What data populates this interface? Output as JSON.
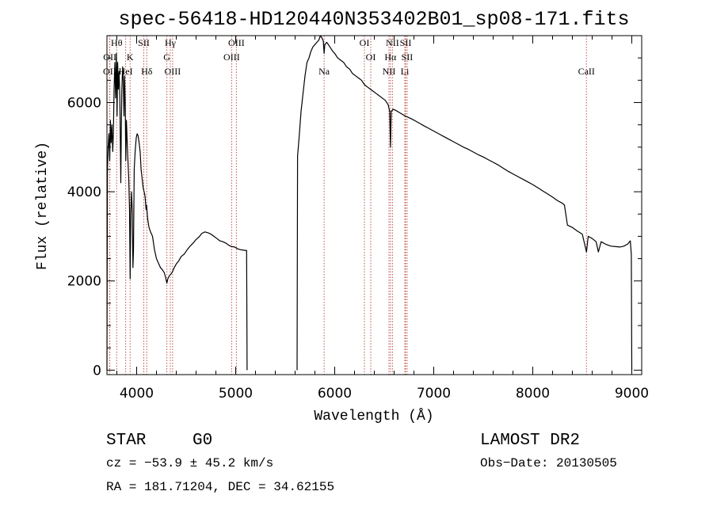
{
  "chart_data": {
    "type": "line",
    "title": "spec-56418-HD120440N353402B01_sp08-171.fits",
    "xlabel": "Wavelength (Å)",
    "ylabel": "Flux (relative)",
    "xlim": [
      3700,
      9100
    ],
    "ylim": [
      -100,
      7500
    ],
    "x_ticks": [
      4000,
      5000,
      6000,
      7000,
      8000,
      9000
    ],
    "y_ticks": [
      0,
      2000,
      4000,
      6000
    ],
    "grid": false,
    "colors": {
      "spectrum": "#000000",
      "line_marker": "#c0504d",
      "frame": "#000000"
    },
    "spectral_lines": [
      {
        "name": "OII",
        "wavelength": 3727,
        "row": 3
      },
      {
        "name": "OII",
        "wavelength": 3729,
        "row": 2
      },
      {
        "name": "Hθ",
        "wavelength": 3798,
        "row": 1
      },
      {
        "name": "HeI",
        "wavelength": 3889,
        "row": 3
      },
      {
        "name": "K",
        "wavelength": 3934,
        "row": 2
      },
      {
        "name": "SII",
        "wavelength": 4072,
        "row": 1
      },
      {
        "name": "Hδ",
        "wavelength": 4102,
        "row": 4
      },
      {
        "name": "Hγ",
        "wavelength": 4340,
        "row": 1
      },
      {
        "name": "G",
        "wavelength": 4305,
        "row": 2
      },
      {
        "name": "OIII",
        "wavelength": 4363,
        "row": 3
      },
      {
        "name": "OIII",
        "wavelength": 4959,
        "row": 2
      },
      {
        "name": "OIII",
        "wavelength": 5007,
        "row": 1
      },
      {
        "name": "Na",
        "wavelength": 5893,
        "row": 4
      },
      {
        "name": "OI",
        "wavelength": 6300,
        "row": 1
      },
      {
        "name": "OI",
        "wavelength": 6364,
        "row": 2
      },
      {
        "name": "NII",
        "wavelength": 6548,
        "row": 4
      },
      {
        "name": "NII",
        "wavelength": 6583,
        "row": 1
      },
      {
        "name": "Hα",
        "wavelength": 6563,
        "row": 2
      },
      {
        "name": "Li",
        "wavelength": 6708,
        "row": 3
      },
      {
        "name": "SII",
        "wavelength": 6716,
        "row": 1
      },
      {
        "name": "SII",
        "wavelength": 6731,
        "row": 2
      },
      {
        "name": "CaII",
        "wavelength": 8542,
        "row": 4
      }
    ],
    "series": [
      {
        "segments": [
          [
            [
              3700,
              0
            ],
            [
              3705,
              4500
            ],
            [
              3712,
              5000
            ],
            [
              3720,
              5300
            ],
            [
              3728,
              4700
            ],
            [
              3735,
              5600
            ],
            [
              3742,
              5100
            ],
            [
              3750,
              5500
            ],
            [
              3758,
              4900
            ],
            [
              3765,
              5300
            ],
            [
              3772,
              6300
            ],
            [
              3780,
              6900
            ],
            [
              3787,
              6100
            ],
            [
              3795,
              7100
            ],
            [
              3802,
              5700
            ],
            [
              3808,
              6900
            ],
            [
              3815,
              6300
            ],
            [
              3822,
              6700
            ],
            [
              3830,
              6100
            ],
            [
              3835,
              5100
            ],
            [
              3840,
              4200
            ],
            [
              3845,
              5400
            ],
            [
              3850,
              6300
            ],
            [
              3858,
              6800
            ],
            [
              3865,
              6500
            ],
            [
              3872,
              5700
            ],
            [
              3878,
              6600
            ],
            [
              3885,
              5900
            ],
            [
              3890,
              4700
            ],
            [
              3897,
              5600
            ],
            [
              3905,
              5100
            ],
            [
              3912,
              4700
            ],
            [
              3920,
              4300
            ],
            [
              3928,
              3600
            ],
            [
              3934,
              2050
            ],
            [
              3940,
              3500
            ],
            [
              3948,
              4000
            ],
            [
              3955,
              3600
            ],
            [
              3962,
              2300
            ],
            [
              3968,
              2700
            ],
            [
              3975,
              4500
            ],
            [
              3985,
              4900
            ],
            [
              3995,
              5200
            ],
            [
              4005,
              5300
            ],
            [
              4015,
              5250
            ],
            [
              4025,
              5100
            ],
            [
              4035,
              4900
            ],
            [
              4045,
              4500
            ],
            [
              4055,
              4300
            ],
            [
              4065,
              4100
            ],
            [
              4075,
              4000
            ],
            [
              4085,
              3900
            ],
            [
              4095,
              3600
            ],
            [
              4100,
              3700
            ],
            [
              4110,
              3400
            ],
            [
              4125,
              3200
            ],
            [
              4140,
              3100
            ],
            [
              4160,
              3000
            ],
            [
              4180,
              2700
            ],
            [
              4200,
              2500
            ],
            [
              4220,
              2400
            ],
            [
              4240,
              2300
            ],
            [
              4260,
              2250
            ],
            [
              4280,
              2180
            ],
            [
              4295,
              2050
            ],
            [
              4305,
              1950
            ],
            [
              4315,
              2050
            ],
            [
              4330,
              2120
            ],
            [
              4345,
              2150
            ],
            [
              4360,
              2200
            ],
            [
              4380,
              2300
            ],
            [
              4400,
              2380
            ],
            [
              4425,
              2450
            ],
            [
              4450,
              2550
            ],
            [
              4480,
              2600
            ],
            [
              4510,
              2700
            ],
            [
              4540,
              2780
            ],
            [
              4570,
              2850
            ],
            [
              4600,
              2930
            ],
            [
              4630,
              2990
            ],
            [
              4660,
              3070
            ],
            [
              4690,
              3100
            ],
            [
              4720,
              3080
            ],
            [
              4750,
              3050
            ],
            [
              4780,
              3000
            ],
            [
              4810,
              2950
            ],
            [
              4840,
              2900
            ],
            [
              4870,
              2880
            ],
            [
              4900,
              2850
            ],
            [
              4930,
              2800
            ],
            [
              4960,
              2770
            ],
            [
              4990,
              2760
            ],
            [
              5020,
              2720
            ],
            [
              5050,
              2700
            ],
            [
              5080,
              2690
            ],
            [
              5110,
              2680
            ],
            [
              5115,
              0
            ]
          ],
          [
            [
              5620,
              0
            ],
            [
              5625,
              4800
            ],
            [
              5640,
              5200
            ],
            [
              5660,
              5800
            ],
            [
              5680,
              6200
            ],
            [
              5700,
              6600
            ],
            [
              5720,
              6900
            ],
            [
              5740,
              7000
            ],
            [
              5760,
              7150
            ],
            [
              5780,
              7250
            ],
            [
              5800,
              7300
            ],
            [
              5820,
              7350
            ],
            [
              5840,
              7400
            ],
            [
              5855,
              7500
            ],
            [
              5870,
              7450
            ],
            [
              5885,
              7380
            ],
            [
              5893,
              7100
            ],
            [
              5900,
              7300
            ],
            [
              5920,
              7350
            ],
            [
              5950,
              7250
            ],
            [
              5980,
              7150
            ],
            [
              6000,
              7100
            ],
            [
              6030,
              7000
            ],
            [
              6060,
              6950
            ],
            [
              6090,
              6900
            ],
            [
              6120,
              6800
            ],
            [
              6150,
              6750
            ],
            [
              6180,
              6650
            ],
            [
              6210,
              6600
            ],
            [
              6240,
              6550
            ],
            [
              6270,
              6500
            ],
            [
              6300,
              6400
            ],
            [
              6330,
              6350
            ],
            [
              6360,
              6300
            ],
            [
              6390,
              6250
            ],
            [
              6420,
              6200
            ],
            [
              6450,
              6150
            ],
            [
              6480,
              6100
            ],
            [
              6510,
              6050
            ],
            [
              6540,
              5950
            ],
            [
              6555,
              5800
            ],
            [
              6563,
              5000
            ],
            [
              6570,
              5800
            ],
            [
              6590,
              5850
            ],
            [
              6620,
              5820
            ],
            [
              6650,
              5780
            ],
            [
              6680,
              5740
            ],
            [
              6710,
              5700
            ],
            [
              6740,
              5670
            ],
            [
              6780,
              5630
            ],
            [
              6820,
              5580
            ],
            [
              6860,
              5530
            ],
            [
              6900,
              5480
            ],
            [
              6950,
              5420
            ],
            [
              7000,
              5360
            ],
            [
              7050,
              5300
            ],
            [
              7100,
              5240
            ],
            [
              7150,
              5180
            ],
            [
              7200,
              5120
            ],
            [
              7250,
              5060
            ],
            [
              7300,
              5000
            ],
            [
              7350,
              4950
            ],
            [
              7400,
              4890
            ],
            [
              7450,
              4830
            ],
            [
              7500,
              4780
            ],
            [
              7550,
              4720
            ],
            [
              7600,
              4660
            ],
            [
              7650,
              4600
            ],
            [
              7700,
              4530
            ],
            [
              7750,
              4460
            ],
            [
              7800,
              4400
            ],
            [
              7850,
              4340
            ],
            [
              7900,
              4280
            ],
            [
              7950,
              4220
            ],
            [
              8000,
              4160
            ],
            [
              8050,
              4090
            ],
            [
              8100,
              4020
            ],
            [
              8150,
              3950
            ],
            [
              8200,
              3880
            ],
            [
              8250,
              3800
            ],
            [
              8300,
              3740
            ],
            [
              8320,
              3700
            ],
            [
              8350,
              3250
            ],
            [
              8400,
              3200
            ],
            [
              8450,
              3120
            ],
            [
              8500,
              3050
            ],
            [
              8542,
              2650
            ],
            [
              8560,
              3000
            ],
            [
              8600,
              2950
            ],
            [
              8640,
              2880
            ],
            [
              8662,
              2650
            ],
            [
              8690,
              2880
            ],
            [
              8740,
              2820
            ],
            [
              8790,
              2780
            ],
            [
              8840,
              2770
            ],
            [
              8880,
              2760
            ],
            [
              8920,
              2780
            ],
            [
              8960,
              2830
            ],
            [
              8985,
              2900
            ],
            [
              8995,
              2600
            ],
            [
              9000,
              0
            ]
          ]
        ]
      }
    ]
  },
  "info": {
    "object_type": "STAR",
    "subclass": "G0",
    "survey": "LAMOST DR2",
    "cz_line": "cz = −53.9 ± 45.2 km/s",
    "obs_date_line": "Obs−Date: 20130505",
    "coords_line": "RA = 181.71204, DEC =  34.62155"
  }
}
